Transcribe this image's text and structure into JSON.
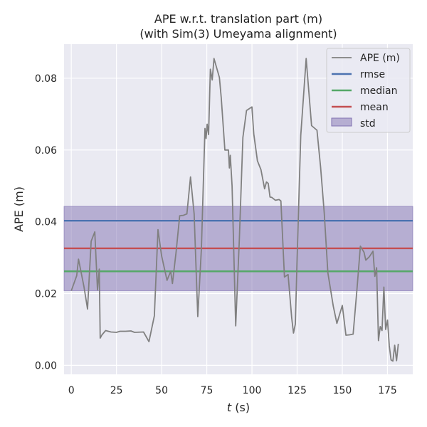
{
  "chart_data": {
    "type": "line",
    "title": "APE w.r.t. translation part (m)",
    "subtitle": "(with Sim(3) Umeyama alignment)",
    "xlabel_var": "t",
    "xlabel_unit": " (s)",
    "ylabel": "APE (m)",
    "xlim": [
      -4,
      189
    ],
    "ylim": [
      -0.0025,
      0.0895
    ],
    "xticks": [
      0,
      25,
      50,
      75,
      100,
      125,
      150,
      175
    ],
    "yticks": [
      0.0,
      0.02,
      0.04,
      0.06,
      0.08
    ],
    "ytick_labels": [
      "0.00",
      "0.02",
      "0.04",
      "0.06",
      "0.08"
    ],
    "grid": true,
    "legend_position": "top-right",
    "legend": [
      "APE (m)",
      "rmse",
      "median",
      "mean",
      "std"
    ],
    "colors": {
      "ape": "#808080",
      "rmse": "#4c72b0",
      "median": "#55a868",
      "mean": "#c44e52",
      "std": "#8172b2",
      "plot_bg": "#eaeaf2",
      "grid": "#ffffff"
    },
    "stats": {
      "rmse": 0.0403,
      "median": 0.0262,
      "mean": 0.0326,
      "std_low": 0.0208,
      "std_high": 0.0443
    },
    "series": [
      {
        "name": "APE (m)",
        "x": [
          0,
          3,
          4,
          7,
          9,
          11,
          13,
          14.5,
          15.5,
          16,
          17,
          19,
          22,
          25,
          27,
          30,
          33,
          35,
          40,
          43,
          46,
          48,
          50,
          53,
          55,
          56,
          58,
          60,
          62,
          64,
          66,
          68,
          70,
          72,
          74,
          74.6,
          75.2,
          76,
          77,
          78,
          79,
          82,
          83,
          85,
          87,
          87.5,
          88,
          89,
          91,
          93,
          95,
          97,
          100,
          101,
          103,
          105,
          107,
          108,
          109,
          110,
          111,
          113,
          115,
          116,
          118,
          120,
          122,
          123,
          124,
          125,
          127,
          130,
          133,
          136,
          138,
          140,
          142,
          145,
          147,
          150,
          152,
          154,
          156,
          158,
          160,
          162,
          163,
          165,
          167,
          168,
          169,
          170,
          171,
          172,
          173,
          174,
          175,
          176,
          177,
          178,
          179,
          180,
          181
        ],
        "y": [
          0.0208,
          0.025,
          0.0296,
          0.022,
          0.0157,
          0.0346,
          0.0372,
          0.021,
          0.0268,
          0.0076,
          0.0085,
          0.0097,
          0.0093,
          0.0092,
          0.0095,
          0.0095,
          0.0096,
          0.0092,
          0.0093,
          0.0066,
          0.0138,
          0.0378,
          0.0305,
          0.0237,
          0.0262,
          0.0228,
          0.0315,
          0.0417,
          0.0418,
          0.0422,
          0.0525,
          0.0422,
          0.0136,
          0.0325,
          0.066,
          0.0632,
          0.0672,
          0.0643,
          0.0825,
          0.0795,
          0.0855,
          0.0802,
          0.0745,
          0.06,
          0.06,
          0.055,
          0.0585,
          0.05,
          0.011,
          0.035,
          0.0635,
          0.071,
          0.072,
          0.0645,
          0.057,
          0.0545,
          0.0492,
          0.0511,
          0.0507,
          0.0469,
          0.0468,
          0.046,
          0.0462,
          0.0458,
          0.0246,
          0.0253,
          0.0132,
          0.009,
          0.0115,
          0.0298,
          0.064,
          0.0855,
          0.0668,
          0.0655,
          0.0552,
          0.0425,
          0.0258,
          0.0165,
          0.0117,
          0.0167,
          0.0084,
          0.0085,
          0.0087,
          0.0205,
          0.0332,
          0.0315,
          0.0293,
          0.0303,
          0.0318,
          0.0248,
          0.0272,
          0.0069,
          0.0108,
          0.0097,
          0.0218,
          0.01,
          0.0126,
          0.0055,
          0.0015,
          0.0012,
          0.0056,
          0.0013,
          0.006
        ]
      },
      {
        "name": "rmse",
        "value": 0.0403
      },
      {
        "name": "median",
        "value": 0.0262
      },
      {
        "name": "mean",
        "value": 0.0326
      },
      {
        "name": "std",
        "range": [
          0.0208,
          0.0443
        ]
      }
    ]
  }
}
